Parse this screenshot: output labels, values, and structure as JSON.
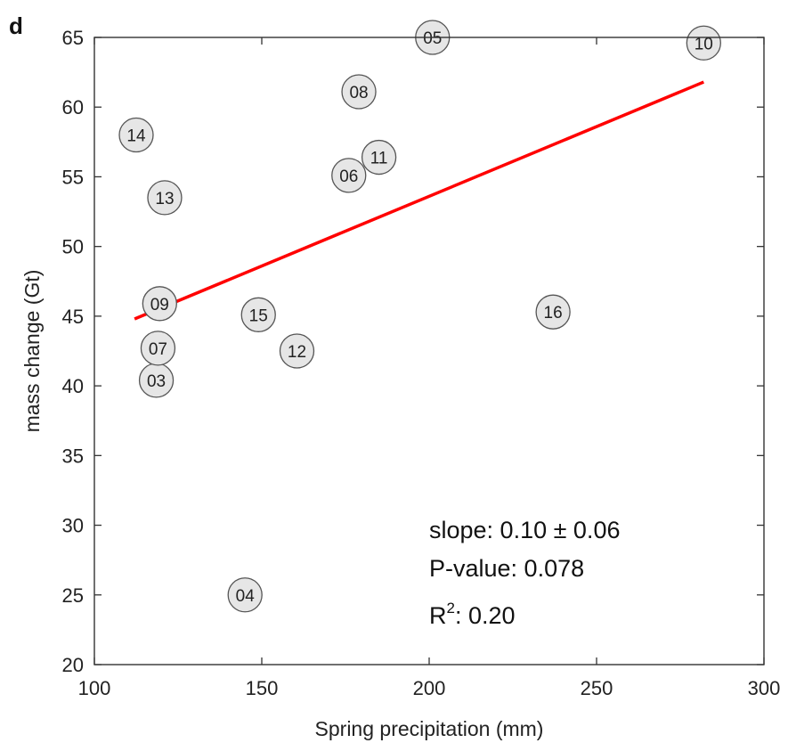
{
  "chart_data": {
    "type": "scatter",
    "panel_label": "d",
    "xlabel": "Spring precipitation (mm)",
    "ylabel": "mass change (Gt)",
    "xlim": [
      100,
      300
    ],
    "ylim": [
      20,
      65
    ],
    "xticks": [
      100,
      150,
      200,
      250,
      300
    ],
    "yticks": [
      20,
      25,
      30,
      35,
      40,
      45,
      50,
      55,
      60,
      65
    ],
    "grid": false,
    "points": [
      {
        "label": "03",
        "x": 118.5,
        "y": 40.4
      },
      {
        "label": "04",
        "x": 145.0,
        "y": 25.0
      },
      {
        "label": "05",
        "x": 201.0,
        "y": 65.0
      },
      {
        "label": "06",
        "x": 176.0,
        "y": 55.1
      },
      {
        "label": "07",
        "x": 119.0,
        "y": 42.7
      },
      {
        "label": "08",
        "x": 179.0,
        "y": 61.1
      },
      {
        "label": "09",
        "x": 119.5,
        "y": 45.9
      },
      {
        "label": "10",
        "x": 282.0,
        "y": 64.6
      },
      {
        "label": "11",
        "x": 185.0,
        "y": 56.4
      },
      {
        "label": "12",
        "x": 160.5,
        "y": 42.5
      },
      {
        "label": "13",
        "x": 121.0,
        "y": 53.5
      },
      {
        "label": "14",
        "x": 112.5,
        "y": 58.0
      },
      {
        "label": "15",
        "x": 149.0,
        "y": 45.1
      },
      {
        "label": "16",
        "x": 237.0,
        "y": 45.3
      }
    ],
    "trend_line": {
      "x": [
        112,
        282
      ],
      "y": [
        44.8,
        61.8
      ],
      "color": "#ff0000"
    },
    "marker_fill": "#e6e6e6",
    "marker_stroke": "#555555",
    "annotations": {
      "slope": "slope: 0.10 ± 0.06",
      "pvalue": "P-value: 0.078",
      "r2_prefix": "R",
      "r2_sup": "2",
      "r2_value": ": 0.20"
    }
  }
}
